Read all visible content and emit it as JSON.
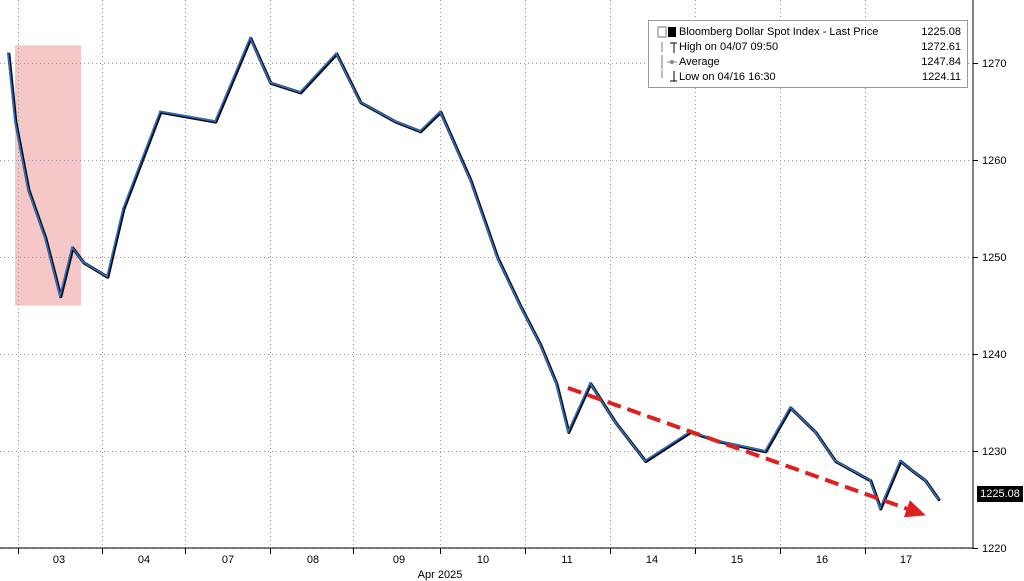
{
  "legend": {
    "title": "Bloomberg Dollar Spot Index - Last Price",
    "title_value": "1225.08",
    "high_label": "High on 04/07 09:50",
    "high_value": "1272.61",
    "avg_label": "Average",
    "avg_value": "1247.84",
    "low_label": "Low on 04/16 16:30",
    "low_value": "1224.11"
  },
  "last_price_tag": "1225.08",
  "chart_data": {
    "type": "line",
    "xlabel": "Apr 2025",
    "ylabel": "",
    "ylim": [
      1219,
      1278
    ],
    "grid": true,
    "legend_position": "top-right",
    "x_ticks": [
      "03",
      "04",
      "07",
      "08",
      "09",
      "10",
      "11",
      "14",
      "15",
      "16",
      "17"
    ],
    "y_ticks": [
      1220,
      1230,
      1240,
      1250,
      1260,
      1270
    ],
    "series": [
      {
        "name": "Bloomberg Dollar Spot Index - Last Price",
        "color": "#2f6fc4",
        "points": [
          {
            "x": "04/02",
            "y": 1271.0
          },
          {
            "x": "04/02 late",
            "y": 1264.0
          },
          {
            "x": "04/03 early",
            "y": 1257.0
          },
          {
            "x": "04/03 mid",
            "y": 1252.0
          },
          {
            "x": "04/03",
            "y": 1246.0
          },
          {
            "x": "04/03 late",
            "y": 1251.0
          },
          {
            "x": "04/04 early",
            "y": 1249.5
          },
          {
            "x": "04/04",
            "y": 1248.0
          },
          {
            "x": "04/04 mid",
            "y": 1255.0
          },
          {
            "x": "04/04 late",
            "y": 1265.0
          },
          {
            "x": "04/07",
            "y": 1264.0
          },
          {
            "x": "04/07 09:50",
            "y": 1272.61
          },
          {
            "x": "04/07 late",
            "y": 1268.0
          },
          {
            "x": "04/08",
            "y": 1267.0
          },
          {
            "x": "04/08 mid",
            "y": 1271.0
          },
          {
            "x": "04/08 late",
            "y": 1266.0
          },
          {
            "x": "04/09",
            "y": 1264.0
          },
          {
            "x": "04/09 mid",
            "y": 1263.0
          },
          {
            "x": "04/09 late",
            "y": 1265.0
          },
          {
            "x": "04/10 early",
            "y": 1258.0
          },
          {
            "x": "04/10",
            "y": 1250.0
          },
          {
            "x": "04/10 mid",
            "y": 1245.0
          },
          {
            "x": "04/10 late",
            "y": 1241.0
          },
          {
            "x": "04/11 early",
            "y": 1237.0
          },
          {
            "x": "04/11",
            "y": 1232.0
          },
          {
            "x": "04/11 mid",
            "y": 1237.0
          },
          {
            "x": "04/11 late",
            "y": 1233.0
          },
          {
            "x": "04/14",
            "y": 1229.0
          },
          {
            "x": "04/14 mid",
            "y": 1232.0
          },
          {
            "x": "04/14 late",
            "y": 1231.0
          },
          {
            "x": "04/15",
            "y": 1230.0
          },
          {
            "x": "04/15 mid",
            "y": 1234.5
          },
          {
            "x": "04/15 late",
            "y": 1232.0
          },
          {
            "x": "04/16",
            "y": 1229.0
          },
          {
            "x": "04/16 mid",
            "y": 1227.0
          },
          {
            "x": "04/16 16:30",
            "y": 1224.11
          },
          {
            "x": "04/17 early",
            "y": 1229.0
          },
          {
            "x": "04/17",
            "y": 1228.0
          },
          {
            "x": "04/17 mid",
            "y": 1227.0
          },
          {
            "x": "04/17 late",
            "y": 1225.08
          }
        ]
      }
    ],
    "annotations": [
      {
        "type": "shaded-region",
        "label": "",
        "x_range": [
          "04/02",
          "04/03"
        ],
        "y_range": [
          1245,
          1271
        ],
        "color": "#f6c7c7"
      },
      {
        "type": "trend-arrow",
        "label": "",
        "from": {
          "x": "04/11",
          "y": 1236.5
        },
        "to": {
          "x": "04/17 late",
          "y": 1223.5
        },
        "color": "#e02020"
      }
    ]
  },
  "colors": {
    "line": "#2f6fc4",
    "line_shadow": "#0d0d0d",
    "arrow": "#e02020",
    "shade": "#f6c7c7",
    "grid": "#9a9a9a"
  }
}
